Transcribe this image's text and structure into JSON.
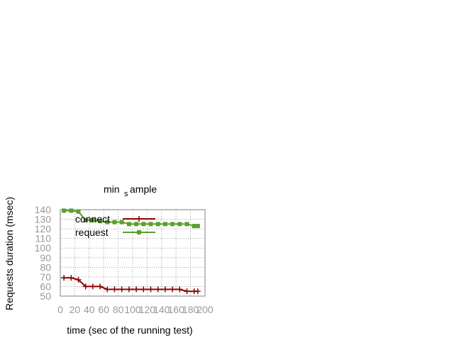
{
  "chart_data": {
    "type": "line",
    "title_main": "min",
    "title_sub": "s",
    "title_tail": "ample",
    "xlabel": "time (sec of the running test)",
    "ylabel": "Requests duration (msec)",
    "xlim": [
      0,
      200
    ],
    "ylim": [
      50,
      140
    ],
    "xticks": [
      0,
      20,
      40,
      60,
      80,
      100,
      120,
      140,
      160,
      180,
      200
    ],
    "yticks": [
      50,
      60,
      70,
      80,
      90,
      100,
      110,
      120,
      130,
      140
    ],
    "grid": true,
    "legend_position": "top-left",
    "series": [
      {
        "name": "connect",
        "color": "#8b0000",
        "marker": "plus",
        "x": [
          5,
          15,
          25,
          35,
          45,
          55,
          65,
          75,
          85,
          95,
          105,
          115,
          125,
          135,
          145,
          155,
          165,
          175,
          185,
          190
        ],
        "y": [
          69,
          69,
          67,
          60,
          60,
          60,
          57,
          57,
          57,
          57,
          57,
          57,
          57,
          57,
          57,
          57,
          57,
          55,
          55,
          55
        ]
      },
      {
        "name": "request",
        "color": "#5aa02c",
        "marker": "square",
        "x": [
          5,
          15,
          25,
          35,
          45,
          55,
          65,
          75,
          85,
          95,
          105,
          115,
          125,
          135,
          145,
          155,
          165,
          175,
          185,
          190
        ],
        "y": [
          139,
          139,
          138,
          129,
          129,
          128,
          127,
          127,
          127,
          125,
          125,
          125,
          125,
          125,
          125,
          125,
          125,
          125,
          123,
          123
        ]
      }
    ]
  }
}
